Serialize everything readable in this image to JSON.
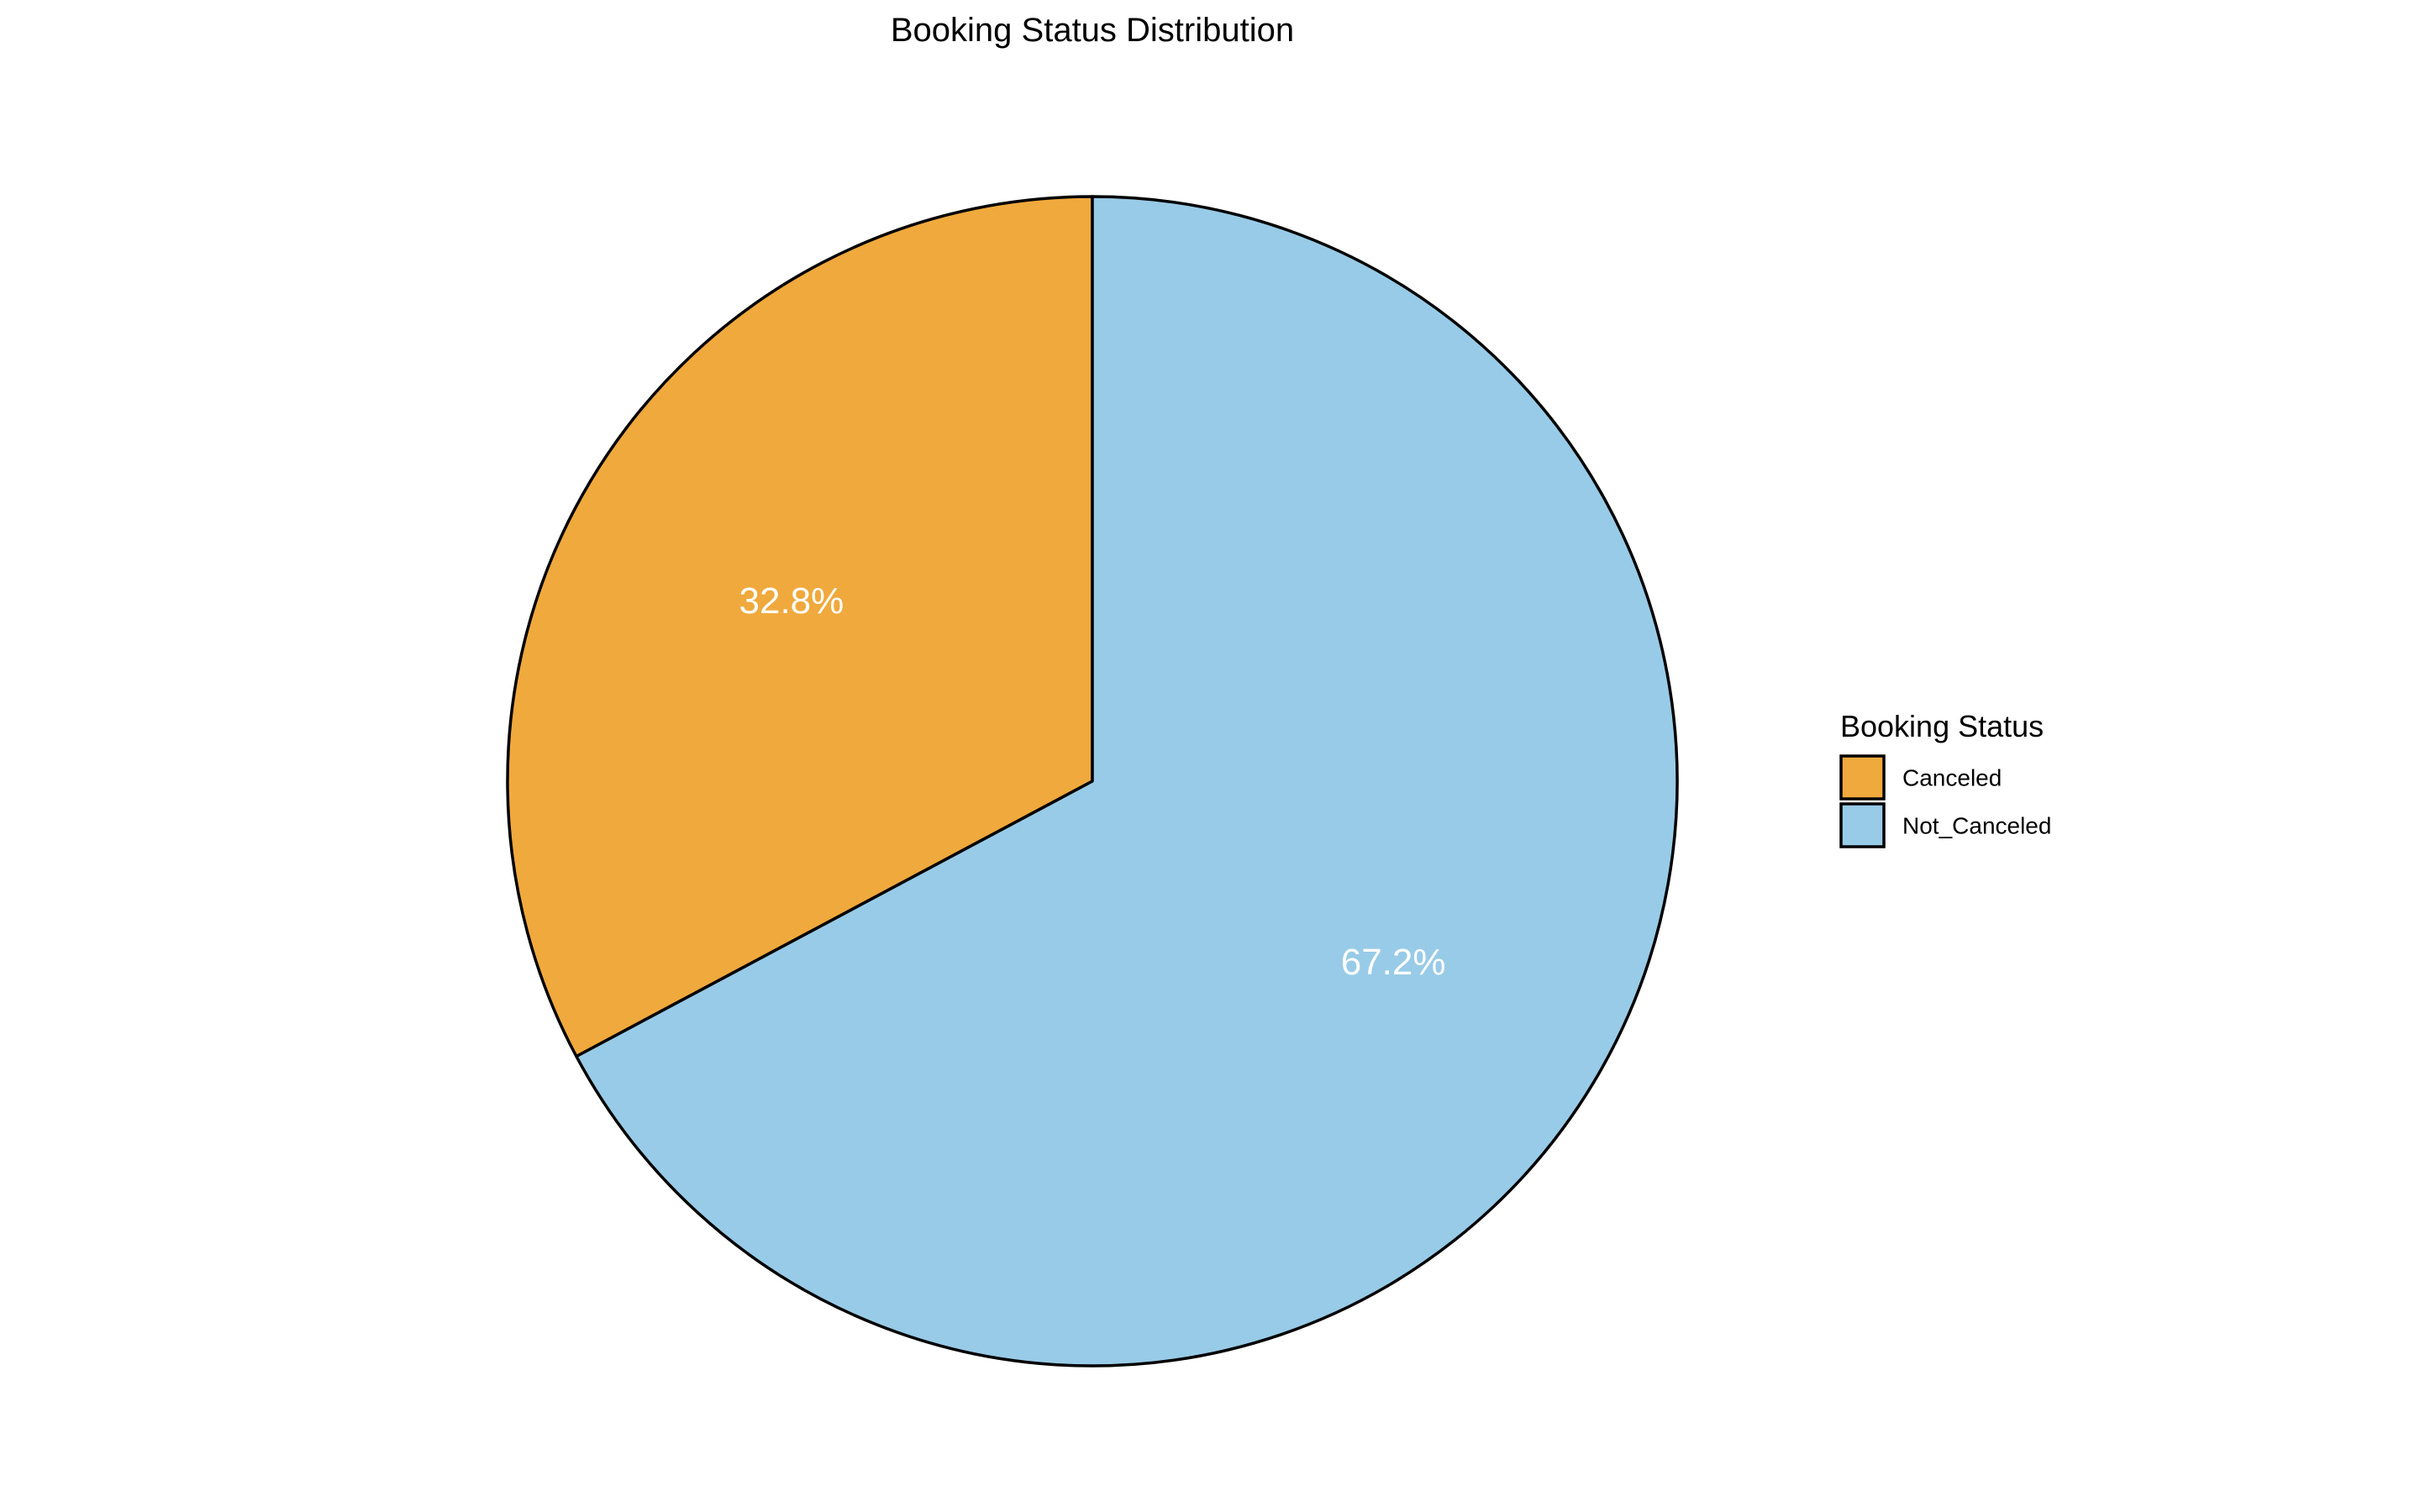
{
  "chart_data": {
    "type": "pie",
    "title": "Booking Status Distribution",
    "legend_title": "Booking Status",
    "legend_position": "right",
    "slices": [
      {
        "label": "Canceled",
        "value": 32.8,
        "display": "32.8%",
        "color": "#F0A93C"
      },
      {
        "label": "Not_Canceled",
        "value": 67.2,
        "display": "67.2%",
        "color": "#98CBE7"
      }
    ],
    "start_angle": "12 o'clock",
    "direction": "counter-clockwise for Canceled, remainder Not_Canceled"
  }
}
